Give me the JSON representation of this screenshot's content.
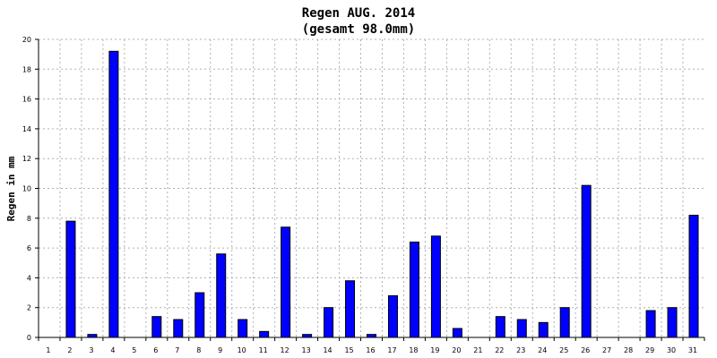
{
  "chart_data": {
    "type": "bar",
    "title": "Regen AUG. 2014",
    "subtitle": "(gesamt 98.0mm)",
    "xlabel": "",
    "ylabel": "Regen in mm",
    "ylim": [
      0,
      20
    ],
    "yticks": [
      "0",
      "2",
      "4",
      "6",
      "8",
      "10",
      "12",
      "14",
      "16",
      "18",
      "20"
    ],
    "grid": true,
    "categories": [
      "1",
      "2",
      "3",
      "4",
      "5",
      "6",
      "7",
      "8",
      "9",
      "10",
      "11",
      "12",
      "13",
      "14",
      "15",
      "16",
      "17",
      "18",
      "19",
      "20",
      "21",
      "22",
      "23",
      "24",
      "25",
      "26",
      "27",
      "28",
      "29",
      "30",
      "31"
    ],
    "values": [
      0,
      7.8,
      0.2,
      19.2,
      0,
      1.4,
      1.2,
      3.0,
      5.6,
      1.2,
      0.4,
      7.4,
      0.2,
      2.0,
      3.8,
      0.2,
      2.8,
      6.4,
      6.8,
      0.6,
      0,
      1.4,
      1.2,
      1.0,
      2.0,
      10.2,
      0,
      0,
      1.8,
      2.0,
      8.2
    ],
    "colors": {
      "bar": "#0000ff",
      "bar_border": "#000000",
      "grid": "#b0b0b0"
    }
  }
}
